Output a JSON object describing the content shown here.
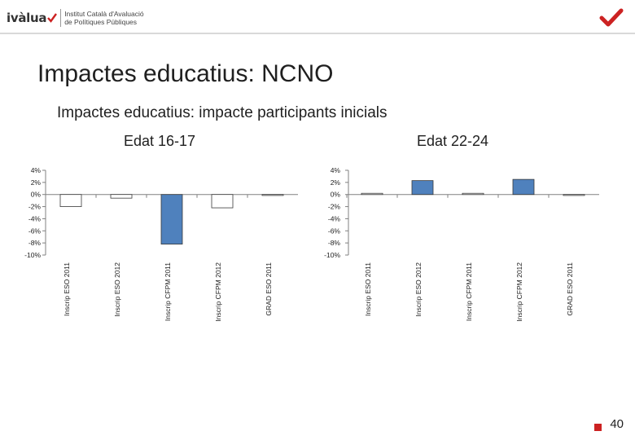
{
  "header": {
    "logo_word": "ivàlua",
    "logo_line1": "Institut Català d'Avaluació",
    "logo_line2": "de Polítiques Públiques"
  },
  "title": "Impactes educatius: NCNO",
  "subtitle": "Impactes educatius: impacte participants inicials",
  "page_number": "40",
  "colors": {
    "bar_positive": "#4f81bd",
    "bar_negative": "#ffffff",
    "brand_red": "#cc2222"
  },
  "chart_data": [
    {
      "type": "bar",
      "title": "Edat 16-17",
      "categories": [
        "Inscrip ESO 2011",
        "Inscrip ESO 2012",
        "Inscrip CFPM 2011",
        "Inscrip CFPM 2012",
        "GRAD ESO 2011"
      ],
      "values": [
        -2.0,
        -0.6,
        -8.2,
        -2.2,
        -0.1
      ],
      "ytick_labels": [
        "4%",
        "2%",
        "0%",
        "-2%",
        "-4%",
        "-6%",
        "-8%",
        "-10%"
      ],
      "ylim": [
        -10,
        4
      ],
      "grid": false,
      "legend": "none"
    },
    {
      "type": "bar",
      "title": "Edat 22-24",
      "categories": [
        "Inscrip ESO 2011",
        "Inscrip ESO 2012",
        "Inscrip CFPM 2011",
        "Inscrip CFPM 2012",
        "GRAD ESO 2011"
      ],
      "values": [
        0.2,
        2.3,
        0.2,
        2.5,
        0.0
      ],
      "ytick_labels": [
        "4%",
        "2%",
        "0%",
        "-2%",
        "-4%",
        "-6%",
        "-8%",
        "-10%"
      ],
      "ylim": [
        -10,
        4
      ],
      "grid": false,
      "legend": "none"
    }
  ]
}
